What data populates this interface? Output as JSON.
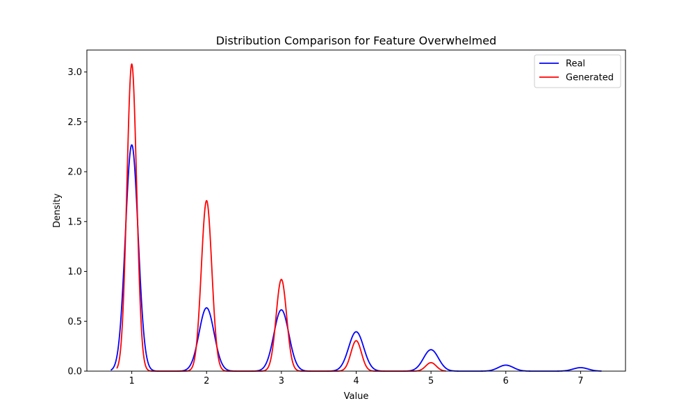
{
  "chart_data": {
    "type": "line",
    "title": "Distribution Comparison for Feature Overwhelmed",
    "xlabel": "Value",
    "ylabel": "Density",
    "xlim": [
      0.4,
      7.6
    ],
    "ylim": [
      0,
      3.22
    ],
    "x_ticks": [
      "1",
      "2",
      "3",
      "4",
      "5",
      "6",
      "7"
    ],
    "y_ticks": [
      "0.0",
      "0.5",
      "1.0",
      "1.5",
      "2.0",
      "2.5",
      "3.0"
    ],
    "grid": false,
    "legend_position": "top-right",
    "series": [
      {
        "name": "Real",
        "color": "#0000ff",
        "x_range": [
          0.72,
          7.28
        ],
        "peaks": [
          {
            "x": 1,
            "y": 2.27,
            "width": 0.085
          },
          {
            "x": 2,
            "y": 0.635,
            "width": 0.1
          },
          {
            "x": 3,
            "y": 0.615,
            "width": 0.1
          },
          {
            "x": 4,
            "y": 0.395,
            "width": 0.1
          },
          {
            "x": 5,
            "y": 0.215,
            "width": 0.1
          },
          {
            "x": 6,
            "y": 0.06,
            "width": 0.1
          },
          {
            "x": 7,
            "y": 0.035,
            "width": 0.1
          }
        ]
      },
      {
        "name": "Generated",
        "color": "#ff0000",
        "x_range": [
          0.8,
          5.2
        ],
        "peaks": [
          {
            "x": 1,
            "y": 3.08,
            "width": 0.065
          },
          {
            "x": 2,
            "y": 1.71,
            "width": 0.07
          },
          {
            "x": 3,
            "y": 0.92,
            "width": 0.07
          },
          {
            "x": 4,
            "y": 0.305,
            "width": 0.07
          },
          {
            "x": 5,
            "y": 0.085,
            "width": 0.07
          }
        ]
      }
    ]
  }
}
